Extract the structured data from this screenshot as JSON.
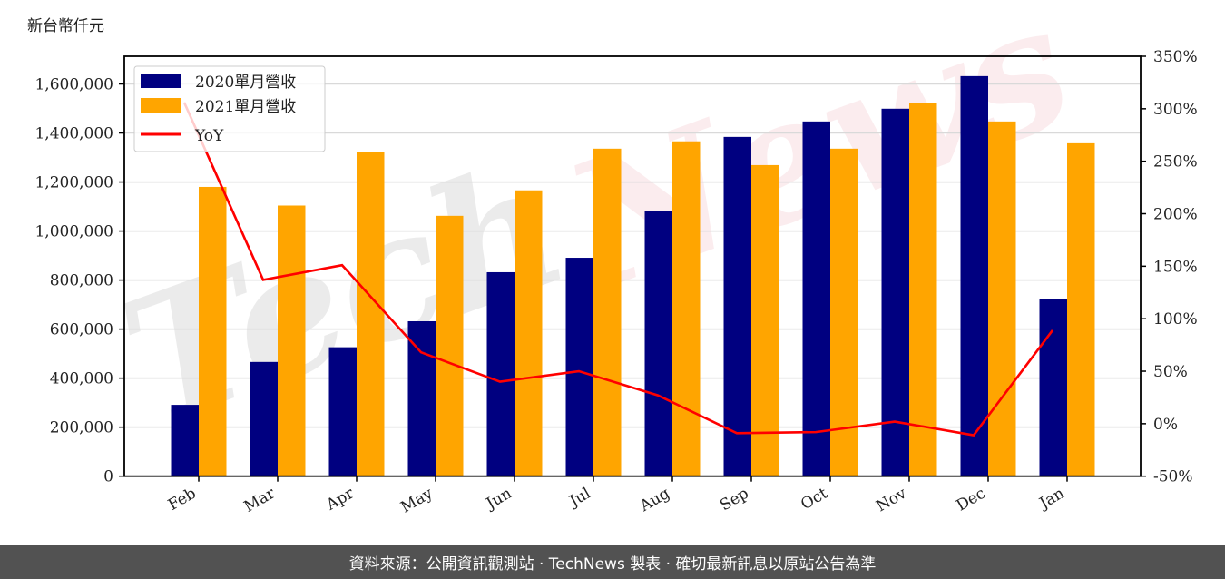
{
  "header": {
    "unit_label": "新台幣仟元"
  },
  "footer": {
    "text": "資料來源：公開資訊觀測站 · TechNews 製表 · 確切最新訊息以原站公告為準",
    "bg_color": "#525252"
  },
  "watermark": {
    "text_left": "Tech",
    "text_right": "News"
  },
  "colors": {
    "series_2020": "#000080",
    "series_2021": "#FFA500",
    "yoy": "#FF0000",
    "grid": "#d9d9d9"
  },
  "chart_data": {
    "type": "bar",
    "title": "",
    "xlabel": "",
    "ylabel": "新台幣仟元",
    "y2label": "",
    "categories": [
      "Feb",
      "Mar",
      "Apr",
      "May",
      "Jun",
      "Jul",
      "Aug",
      "Sep",
      "Oct",
      "Nov",
      "Dec",
      "Jan"
    ],
    "series": [
      {
        "name": "2020單月營收",
        "type": "bar",
        "axis": "left",
        "color": "#000080",
        "values": [
          291000,
          466000,
          526000,
          632000,
          832000,
          891000,
          1080000,
          1384000,
          1447000,
          1499000,
          1632000,
          721000
        ]
      },
      {
        "name": "2021單月營收",
        "type": "bar",
        "axis": "left",
        "color": "#FFA500",
        "values": [
          1180000,
          1104000,
          1321000,
          1062000,
          1166000,
          1336000,
          1366000,
          1269000,
          1336000,
          1522000,
          1447000,
          1358000
        ]
      },
      {
        "name": "YoY",
        "type": "line",
        "axis": "right",
        "color": "#FF0000",
        "values": [
          306,
          137,
          151,
          68,
          40,
          50,
          27,
          -9,
          -8,
          2,
          -11,
          89
        ]
      }
    ],
    "ylim": [
      0,
      1713000
    ],
    "y2lim": [
      -50,
      350
    ],
    "yticks": [
      0,
      200000,
      400000,
      600000,
      800000,
      1000000,
      1200000,
      1400000,
      1600000
    ],
    "ytick_labels": [
      "0",
      "200,000",
      "400,000",
      "600,000",
      "800,000",
      "1,000,000",
      "1,200,000",
      "1,400,000",
      "1,600,000"
    ],
    "y2ticks": [
      -50,
      0,
      50,
      100,
      150,
      200,
      250,
      300,
      350
    ],
    "y2tick_labels": [
      "-50%",
      "0%",
      "50%",
      "100%",
      "150%",
      "200%",
      "250%",
      "300%",
      "350%"
    ],
    "grid": true,
    "legend_position": "upper left",
    "legend": [
      "2020單月營收",
      "2021單月營收",
      "YoY"
    ]
  }
}
